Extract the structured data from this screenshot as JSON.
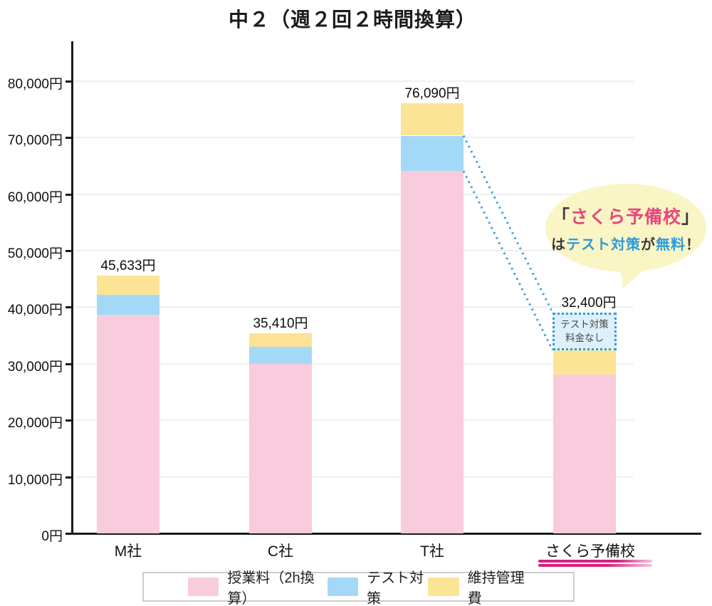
{
  "title": "中２（週２回２時間換算）",
  "chart_data": {
    "type": "bar",
    "stacked": true,
    "title": "中２（週２回２時間換算）",
    "categories": [
      "M社",
      "C社",
      "T社",
      "さくら予備校"
    ],
    "total_labels": [
      "45,633円",
      "35,410円",
      "76,090円",
      "32,400円"
    ],
    "totals_yen": [
      45633,
      35410,
      76090,
      32400
    ],
    "series": [
      {
        "name": "授業料（2h換算）",
        "color": "#F8CBDD",
        "values": [
          38633,
          30000,
          64090,
          28080
        ]
      },
      {
        "name": "テスト対策",
        "color": "#A3D9F6",
        "values": [
          3500,
          3000,
          6250,
          0
        ]
      },
      {
        "name": "維持管理費",
        "color": "#FBE495",
        "values": [
          3500,
          2410,
          5750,
          4320
        ]
      }
    ],
    "ylim": [
      0,
      88000
    ],
    "ytick_step": 10000,
    "ytick_labels": [
      "0円",
      "10,000円",
      "20,000円",
      "30,000円",
      "40,000円",
      "50,000円",
      "60,000円",
      "70,000円",
      "80,000円"
    ],
    "grid": true,
    "legend_position": "bottom"
  },
  "annotation_box": {
    "line1": "テスト対策",
    "line2": "料金なし",
    "span_yen": 6700,
    "fill": "#DDF0FB",
    "border_color": "#2F9CD9",
    "target_category": "さくら予備校",
    "connected_from_series": "テスト対策",
    "connected_from_category": "T社",
    "connector_color": "#3A9FD9"
  },
  "speech_bubble": {
    "fill": "#FAF5C5",
    "line1_parts": [
      {
        "text": "「",
        "color": "#3b3b3b"
      },
      {
        "text": "さくら予備校",
        "color": "#E8457D"
      },
      {
        "text": "」",
        "color": "#3b3b3b"
      }
    ],
    "line2_parts": [
      {
        "text": "は",
        "color": "#3b3b3b"
      },
      {
        "text": "テスト対策",
        "color": "#2E9BD9"
      },
      {
        "text": "が",
        "color": "#3b3b3b"
      },
      {
        "text": "無料",
        "color": "#2E9BD9"
      },
      {
        "text": "！",
        "color": "#3b3b3b"
      }
    ]
  },
  "x_axis": {
    "highlighted_category": "さくら予備校",
    "highlight_underline_color": "#D6217F"
  }
}
